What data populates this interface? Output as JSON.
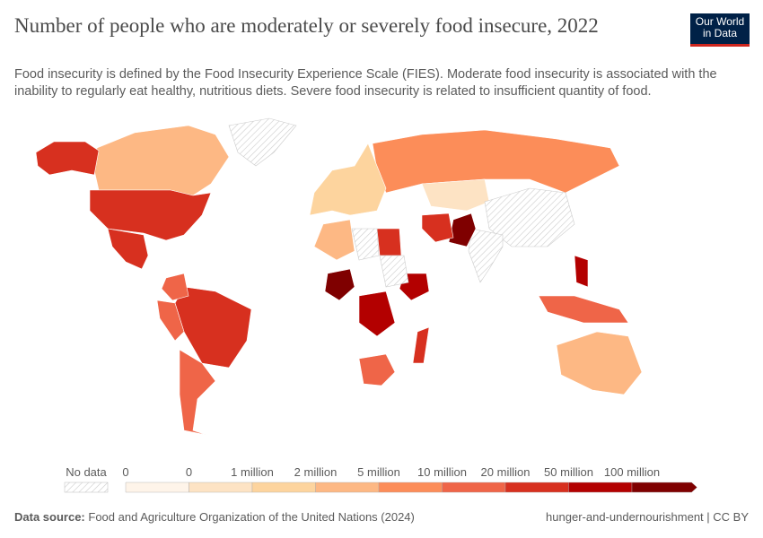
{
  "header": {
    "title": "Number of people who are moderately or severely food insecure, 2022",
    "subtitle": "Food insecurity is defined by the Food Insecurity Experience Scale (FIES). Moderate food insecurity is associated with the inability to regularly eat healthy, nutritious diets. Severe food insecurity is related to insufficient quantity of food.",
    "logo": "Our World in Data"
  },
  "legend": {
    "no_data": "No data",
    "bins": [
      "0",
      "0",
      "1 million",
      "2 million",
      "5 million",
      "10 million",
      "20 million",
      "50 million",
      "100 million"
    ],
    "colors": [
      "#fef4e9",
      "#fde3c4",
      "#fdd49e",
      "#fdb884",
      "#fc8d59",
      "#ef6548",
      "#d7301f",
      "#b30000",
      "#7f0000"
    ],
    "no_data_color": "#e8e8e8"
  },
  "chart_data": {
    "type": "map",
    "title": "Number of people who are moderately or severely food insecure, 2022",
    "scale": "binned",
    "regions": [
      {
        "name": "Canada",
        "bin": 3
      },
      {
        "name": "United States",
        "bin": 6
      },
      {
        "name": "Alaska (US)",
        "bin": 6
      },
      {
        "name": "Mexico",
        "bin": 6
      },
      {
        "name": "Greenland",
        "bin": -1
      },
      {
        "name": "Brazil",
        "bin": 6
      },
      {
        "name": "Argentina",
        "bin": 5
      },
      {
        "name": "Colombia",
        "bin": 5
      },
      {
        "name": "Peru",
        "bin": 5
      },
      {
        "name": "Russia",
        "bin": 4
      },
      {
        "name": "Kazakhstan",
        "bin": 1
      },
      {
        "name": "China",
        "bin": -1
      },
      {
        "name": "India",
        "bin": -1
      },
      {
        "name": "Pakistan",
        "bin": 8
      },
      {
        "name": "Iran",
        "bin": 6
      },
      {
        "name": "Nigeria",
        "bin": 8
      },
      {
        "name": "DR Congo",
        "bin": 7
      },
      {
        "name": "Ethiopia",
        "bin": 7
      },
      {
        "name": "Egypt",
        "bin": 6
      },
      {
        "name": "Algeria",
        "bin": 3
      },
      {
        "name": "Libya",
        "bin": -1
      },
      {
        "name": "Sudan",
        "bin": -1
      },
      {
        "name": "South Africa",
        "bin": 5
      },
      {
        "name": "Madagascar",
        "bin": 6
      },
      {
        "name": "Philippines",
        "bin": 7
      },
      {
        "name": "Indonesia",
        "bin": 5
      },
      {
        "name": "Australia",
        "bin": 3
      },
      {
        "name": "Europe",
        "bin": 2
      }
    ]
  },
  "footer": {
    "source_label": "Data source:",
    "source": "Food and Agriculture Organization of the United Nations (2024)",
    "right": "hunger-and-undernourishment | CC BY"
  }
}
